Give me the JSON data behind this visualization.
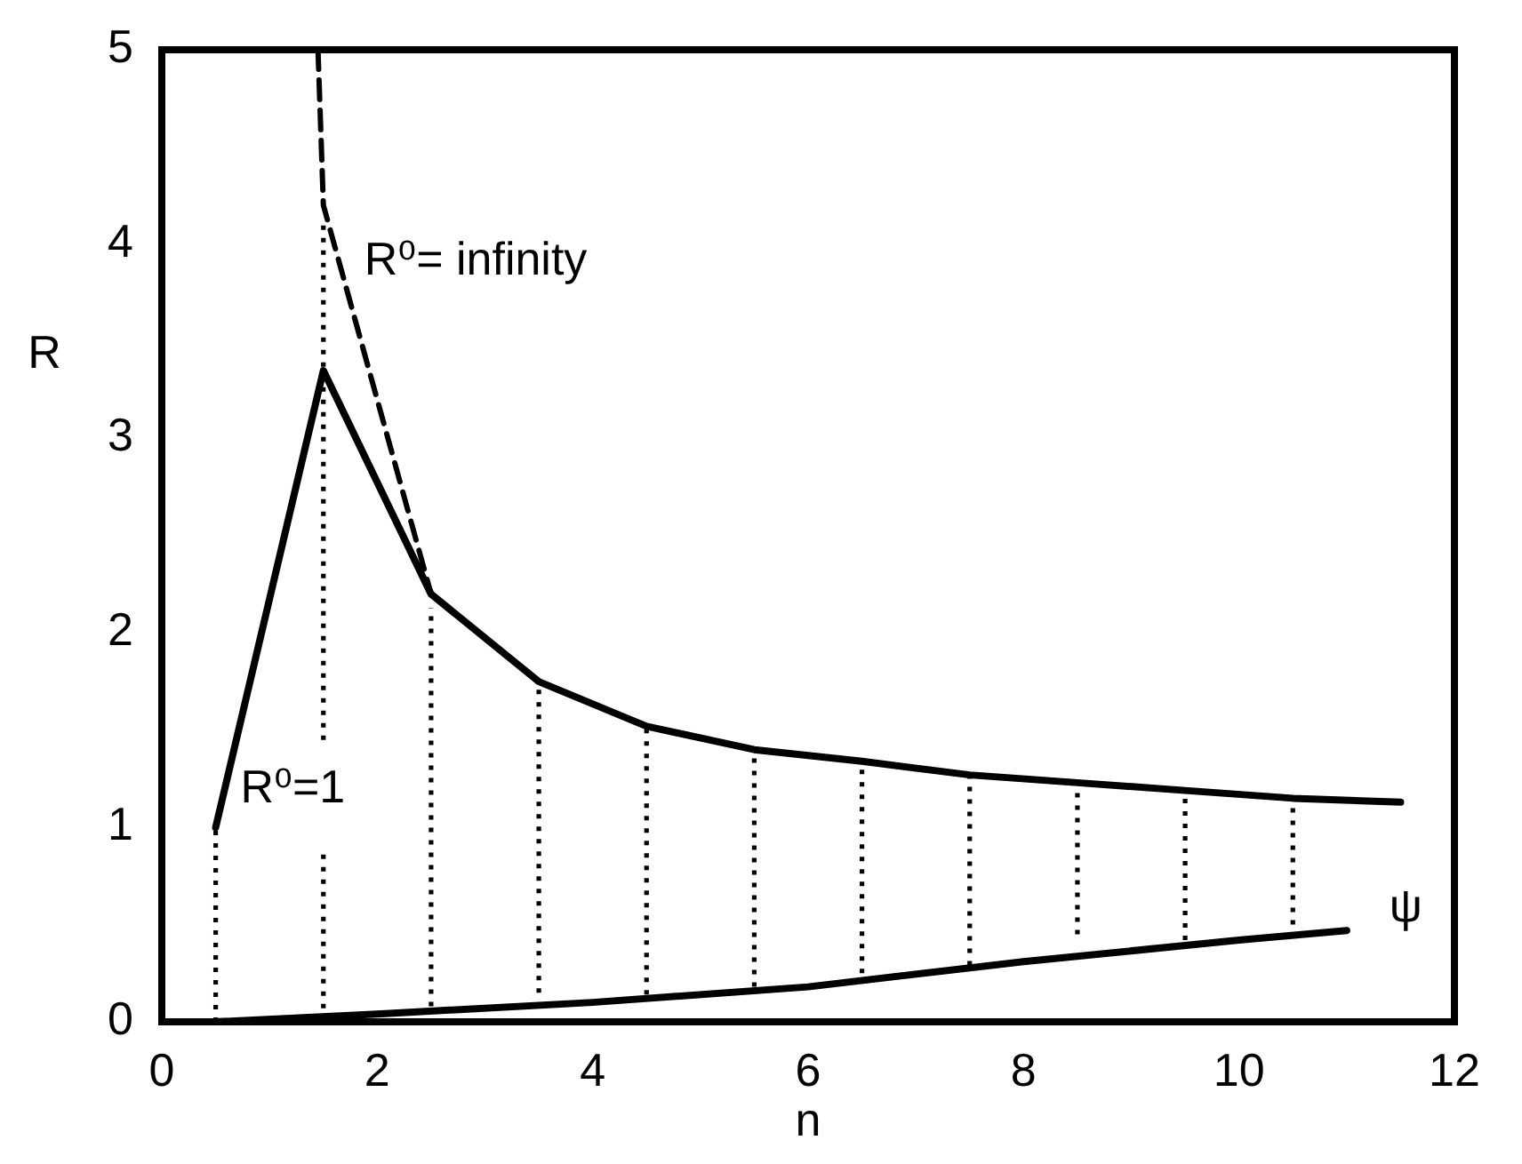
{
  "chart_data": {
    "type": "line",
    "xlabel": "n",
    "ylabel": "R",
    "xlim": [
      0,
      12
    ],
    "ylim": [
      0,
      5
    ],
    "xticks": [
      0,
      2,
      4,
      6,
      8,
      10,
      12
    ],
    "yticks": [
      0,
      1,
      2,
      3,
      4,
      5
    ],
    "series": [
      {
        "name": "R⁰=1",
        "color": "#000000",
        "line_style": "solid",
        "x": [
          0.5,
          1.5,
          2.5,
          3.5,
          4.5,
          5.5,
          6.5,
          7.5,
          8.5,
          9.5,
          10.5,
          11.5
        ],
        "values": [
          1.0,
          3.35,
          2.2,
          1.75,
          1.52,
          1.4,
          1.34,
          1.27,
          1.23,
          1.19,
          1.15,
          1.13
        ]
      },
      {
        "name": "R⁰= infinity",
        "color": "#000000",
        "line_style": "dashed",
        "x": [
          1.45,
          1.5,
          2.5
        ],
        "values": [
          5,
          4.2,
          2.2
        ]
      },
      {
        "name": "ψ",
        "color": "#000000",
        "line_style": "solid",
        "x": [
          0.5,
          2,
          4,
          6,
          8,
          10,
          11
        ],
        "values": [
          0,
          0.04,
          0.1,
          0.18,
          0.31,
          0.42,
          0.47
        ]
      },
      {
        "color": "#000000",
        "line_style": "dotted",
        "x": [
          0.5,
          0.5
        ],
        "values": [
          0,
          1.0
        ]
      },
      {
        "color": "#000000",
        "line_style": "dotted",
        "x": [
          1.5,
          1.5
        ],
        "values": [
          0.07,
          0.89
        ]
      },
      {
        "color": "#000000",
        "line_style": "dotted",
        "x": [
          1.5,
          1.5
        ],
        "values": [
          1.45,
          4.12
        ]
      },
      {
        "color": "#000000",
        "line_style": "dotted",
        "x": [
          2.5,
          2.5
        ],
        "values": [
          0.08,
          2.13
        ]
      },
      {
        "color": "#000000",
        "line_style": "dotted",
        "x": [
          3.5,
          3.5
        ],
        "values": [
          0.15,
          1.75
        ]
      },
      {
        "color": "#000000",
        "line_style": "dotted",
        "x": [
          4.5,
          4.5
        ],
        "values": [
          0.14,
          1.52
        ]
      },
      {
        "color": "#000000",
        "line_style": "dotted",
        "x": [
          5.5,
          5.5
        ],
        "values": [
          0.18,
          1.4
        ]
      },
      {
        "color": "#000000",
        "line_style": "dotted",
        "x": [
          6.5,
          6.5
        ],
        "values": [
          0.25,
          1.34
        ]
      },
      {
        "color": "#000000",
        "line_style": "dotted",
        "x": [
          7.5,
          7.5
        ],
        "values": [
          0.29,
          1.27
        ]
      },
      {
        "color": "#000000",
        "line_style": "dotted",
        "x": [
          8.5,
          8.5
        ],
        "values": [
          0.45,
          1.23
        ]
      },
      {
        "color": "#000000",
        "line_style": "dotted",
        "x": [
          9.5,
          9.5
        ],
        "values": [
          0.42,
          1.19
        ]
      },
      {
        "color": "#000000",
        "line_style": "dotted",
        "x": [
          10.5,
          10.5
        ],
        "values": [
          0.5,
          1.15
        ]
      }
    ]
  }
}
